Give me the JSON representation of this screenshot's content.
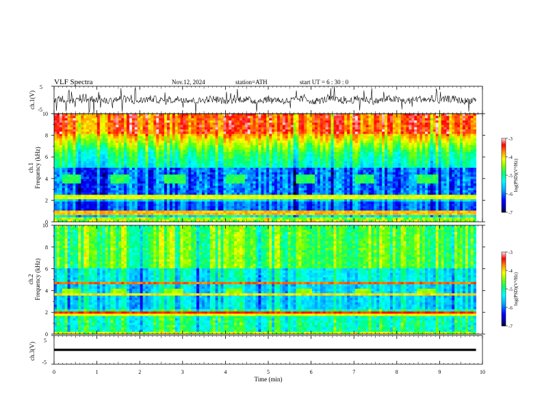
{
  "header": {
    "title": "VLF  Spectra",
    "date": "Nov.12, 2024",
    "station": "station=ATH",
    "start_ut": "start  UT  =   6   : 30 : 0"
  },
  "chart_data": [
    {
      "type": "line",
      "ylabel": "ch.1(V)",
      "ylim": [
        -5,
        5
      ],
      "yticks": [
        "5",
        "-5"
      ],
      "xlim": [
        0,
        10
      ]
    },
    {
      "type": "heatmap",
      "ylabel_line1": "ch.1",
      "ylabel_line2": "Frequency (kHz)",
      "ylim": [
        0,
        10
      ],
      "yticks": [
        "0",
        "2",
        "4",
        "6",
        "8",
        "10"
      ],
      "xlim": [
        0,
        10
      ],
      "colorbar": {
        "label": "log(PSD)(V²/Hz)",
        "range": [
          -7,
          -3
        ],
        "ticks": [
          "-3",
          "-4",
          "-5",
          "-6",
          "-7"
        ]
      }
    },
    {
      "type": "heatmap",
      "ylabel_line1": "ch.2",
      "ylabel_line2": "Frequency (kHz)",
      "ylim": [
        0,
        10
      ],
      "yticks": [
        "0",
        "2",
        "4",
        "6",
        "8",
        "10"
      ],
      "xlim": [
        0,
        10
      ],
      "colorbar": {
        "label": "log(PSD)(V²/Hz)",
        "range": [
          -7,
          -3
        ],
        "ticks": [
          "-3",
          "-4",
          "-5",
          "-6",
          "-7"
        ]
      }
    },
    {
      "type": "line",
      "ylabel": "ch.3(V)",
      "ylim": [
        -5,
        5
      ],
      "yticks": [
        "5",
        "-5"
      ],
      "xlim": [
        0,
        10
      ],
      "xlabel": "Time  (min)",
      "xticks": [
        "0",
        "1",
        "2",
        "3",
        "4",
        "5",
        "6",
        "7",
        "8",
        "9",
        "10"
      ]
    }
  ]
}
